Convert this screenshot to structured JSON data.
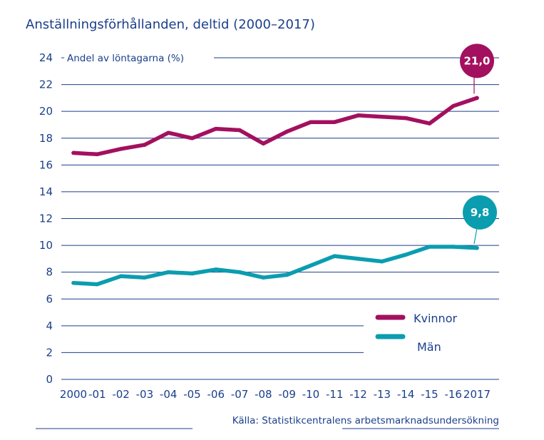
{
  "chart_data": {
    "type": "line",
    "title": "Anställningsförhållanden, deltid (2000–2017)",
    "ylabel": "Andel av löntagarna (%)",
    "xlabel": "",
    "categories": [
      "2000",
      "-01",
      "-02",
      "-03",
      "-04",
      "-05",
      "-06",
      "-07",
      "-08",
      "-09",
      "-10",
      "-11",
      "-12",
      "-13",
      "-14",
      "-15",
      "-16",
      "2017"
    ],
    "yticks": [
      "0",
      "2",
      "4",
      "6",
      "8",
      "10",
      "12",
      "14",
      "16",
      "18",
      "20",
      "22",
      "24"
    ],
    "ylim": [
      0,
      24
    ],
    "grid": true,
    "legend_position": "bottom-right",
    "series": [
      {
        "name": "Kvinnor",
        "color": "#a3105f",
        "values": [
          16.9,
          16.8,
          17.2,
          17.5,
          18.4,
          18.0,
          18.7,
          18.6,
          17.6,
          18.5,
          19.2,
          19.2,
          19.7,
          19.6,
          19.5,
          19.1,
          20.4,
          21.0
        ],
        "end_label": "21,0"
      },
      {
        "name": "Män",
        "color": "#0a9daf",
        "values": [
          7.2,
          7.1,
          7.7,
          7.6,
          8.0,
          7.9,
          8.2,
          8.0,
          7.6,
          7.8,
          8.5,
          9.2,
          9.0,
          8.8,
          9.3,
          9.9,
          9.9,
          9.8
        ],
        "end_label": "9,8"
      }
    ],
    "source": "Källa: Statistikcentralens arbetsmarknadsundersökning"
  },
  "colors": {
    "text": "#1b3f8b",
    "grid": "#1b3f8b"
  }
}
